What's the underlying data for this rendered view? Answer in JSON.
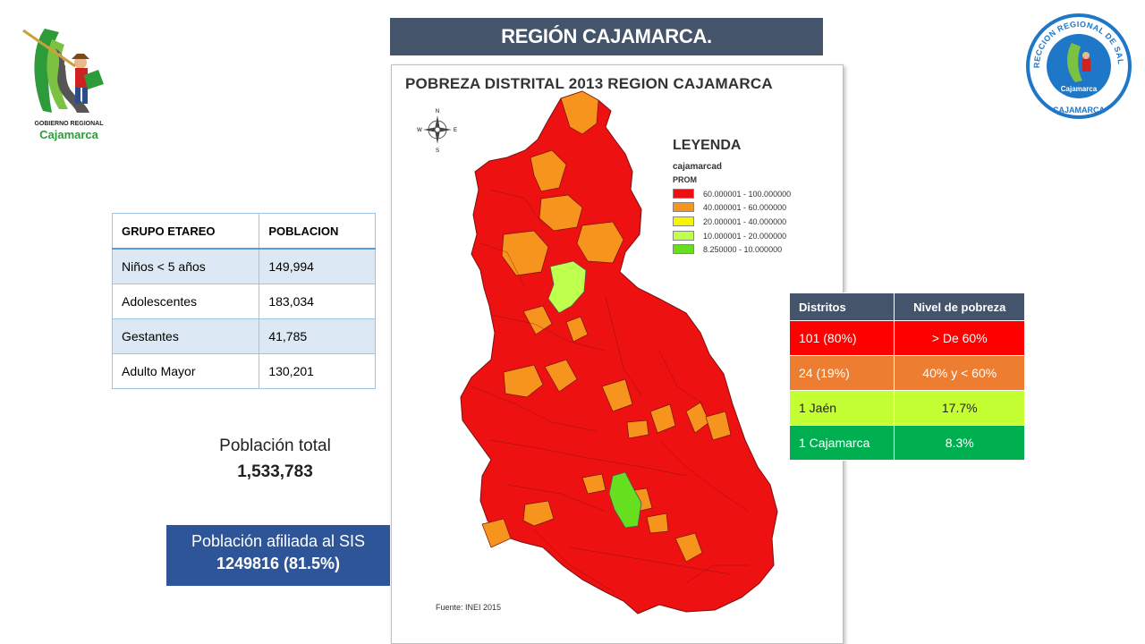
{
  "header": {
    "title": "REGIÓN CAJAMARCA."
  },
  "logo_left": {
    "line1": "GOBIERNO REGIONAL",
    "line2": "Cajamarca"
  },
  "logo_right": {
    "ring_text": "DIRECCION REGIONAL DE SALUD",
    "bottom_text": "CAJAMARCA",
    "center_text": "Cajamarca"
  },
  "population_table": {
    "headers": [
      "GRUPO ETAREO",
      "POBLACION"
    ],
    "rows": [
      [
        "Niños < 5 años",
        "149,994"
      ],
      [
        "Adolescentes",
        "183,034"
      ],
      [
        "Gestantes",
        "41,785"
      ],
      [
        "Adulto Mayor",
        "130,201"
      ]
    ]
  },
  "total": {
    "label": "Población total",
    "value": "1,533,783"
  },
  "sis": {
    "label": "Población afiliada al SIS",
    "value": "1249816 (81.5%)"
  },
  "map": {
    "title": "POBREZA DISTRITAL 2013 REGION CAJAMARCA",
    "source": "Fuente: INEI 2015",
    "compass": {
      "n": "N",
      "s": "S",
      "e": "E",
      "w": "W"
    },
    "legend": {
      "title": "LEYENDA",
      "subtitle1": "cajamarcad",
      "subtitle2": "PROM",
      "items": [
        {
          "label": "60.000001 - 100.000000",
          "color": "#ee1111"
        },
        {
          "label": "40.000001 - 60.000000",
          "color": "#f7941d"
        },
        {
          "label": "20.000001 - 40.000000",
          "color": "#f5f500"
        },
        {
          "label": "10.000001 - 20.000000",
          "color": "#bfff4d"
        },
        {
          "label": "8.250000 - 10.000000",
          "color": "#66e01e"
        }
      ]
    },
    "colors": {
      "high": "#ee1111",
      "mid": "#f7941d",
      "low": "#bfff4d",
      "lowest": "#66e01e"
    }
  },
  "district_table": {
    "headers": [
      "Distritos",
      "Nivel de pobreza"
    ],
    "rows": [
      [
        "101 (80%)",
        "> De 60%"
      ],
      [
        "24 (19%)",
        "40% y < 60%"
      ],
      [
        "1 Jaén",
        "17.7%"
      ],
      [
        "1 Cajamarca",
        "8.3%"
      ]
    ]
  }
}
